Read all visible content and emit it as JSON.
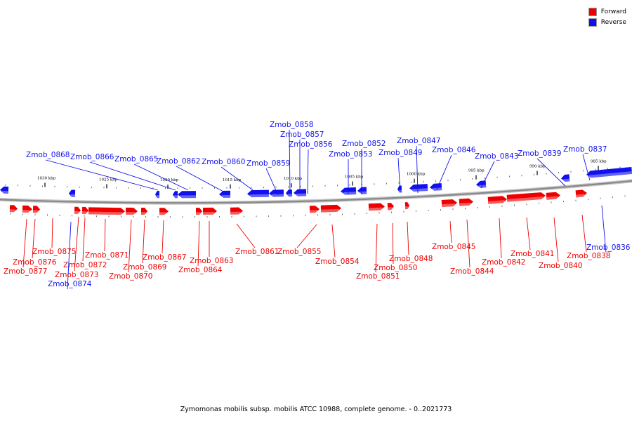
{
  "legend": [
    {
      "label": "Forward",
      "color": "#ee0000"
    },
    {
      "label": "Reverse",
      "color": "#1111ee"
    }
  ],
  "caption": "Zymomonas mobilis subsp. mobilis ATCC 10988, complete genome. - 0..2021773",
  "colors": {
    "forward": "#ee0000",
    "reverse": "#1111ee",
    "backbone": "#888888"
  },
  "kbp_ticks": [
    {
      "kbp": 1030,
      "label": "1030 kbp"
    },
    {
      "kbp": 1025,
      "label": "1025 kbp"
    },
    {
      "kbp": 1020,
      "label": "1020 kbp"
    },
    {
      "kbp": 1015,
      "label": "1015 kbp"
    },
    {
      "kbp": 1010,
      "label": "1010 kbp"
    },
    {
      "kbp": 1005,
      "label": "1005 kbp"
    },
    {
      "kbp": 1000,
      "label": "1000 kbp"
    },
    {
      "kbp": 995,
      "label": "995 kbp"
    },
    {
      "kbp": 990,
      "label": "990 kbp"
    },
    {
      "kbp": 985,
      "label": "985 kbp"
    }
  ],
  "genes": [
    {
      "id": "Zmob_0877",
      "strand": "forward"
    },
    {
      "id": "Zmob_0876",
      "strand": "forward"
    },
    {
      "id": "Zmob_0875",
      "strand": "forward"
    },
    {
      "id": "Zmob_0874",
      "strand": "reverse"
    },
    {
      "id": "Zmob_0873",
      "strand": "forward"
    },
    {
      "id": "Zmob_0872",
      "strand": "forward"
    },
    {
      "id": "Zmob_0871",
      "strand": "forward"
    },
    {
      "id": "Zmob_0870",
      "strand": "forward"
    },
    {
      "id": "Zmob_0869",
      "strand": "forward"
    },
    {
      "id": "Zmob_0868",
      "strand": "reverse"
    },
    {
      "id": "Zmob_0867",
      "strand": "forward"
    },
    {
      "id": "Zmob_0866",
      "strand": "reverse"
    },
    {
      "id": "Zmob_0865",
      "strand": "reverse"
    },
    {
      "id": "Zmob_0864",
      "strand": "forward"
    },
    {
      "id": "Zmob_0863",
      "strand": "forward"
    },
    {
      "id": "Zmob_0862",
      "strand": "reverse"
    },
    {
      "id": "Zmob_0861",
      "strand": "forward"
    },
    {
      "id": "Zmob_0860",
      "strand": "reverse"
    },
    {
      "id": "Zmob_0859",
      "strand": "reverse"
    },
    {
      "id": "Zmob_0858",
      "strand": "reverse"
    },
    {
      "id": "Zmob_0857",
      "strand": "reverse"
    },
    {
      "id": "Zmob_0856",
      "strand": "reverse"
    },
    {
      "id": "Zmob_0855",
      "strand": "forward"
    },
    {
      "id": "Zmob_0854",
      "strand": "forward"
    },
    {
      "id": "Zmob_0853",
      "strand": "reverse"
    },
    {
      "id": "Zmob_0852",
      "strand": "reverse"
    },
    {
      "id": "Zmob_0851",
      "strand": "forward"
    },
    {
      "id": "Zmob_0850",
      "strand": "forward"
    },
    {
      "id": "Zmob_0849",
      "strand": "reverse"
    },
    {
      "id": "Zmob_0848",
      "strand": "forward"
    },
    {
      "id": "Zmob_0847",
      "strand": "reverse"
    },
    {
      "id": "Zmob_0846",
      "strand": "reverse"
    },
    {
      "id": "Zmob_0845",
      "strand": "forward"
    },
    {
      "id": "Zmob_0844",
      "strand": "forward"
    },
    {
      "id": "Zmob_0843",
      "strand": "reverse"
    },
    {
      "id": "Zmob_0842",
      "strand": "forward"
    },
    {
      "id": "Zmob_0841",
      "strand": "forward"
    },
    {
      "id": "Zmob_0840",
      "strand": "forward"
    },
    {
      "id": "Zmob_0839",
      "strand": "reverse"
    },
    {
      "id": "Zmob_0838",
      "strand": "forward"
    },
    {
      "id": "Zmob_0837",
      "strand": "reverse"
    },
    {
      "id": "Zmob_0836",
      "strand": "reverse"
    }
  ]
}
